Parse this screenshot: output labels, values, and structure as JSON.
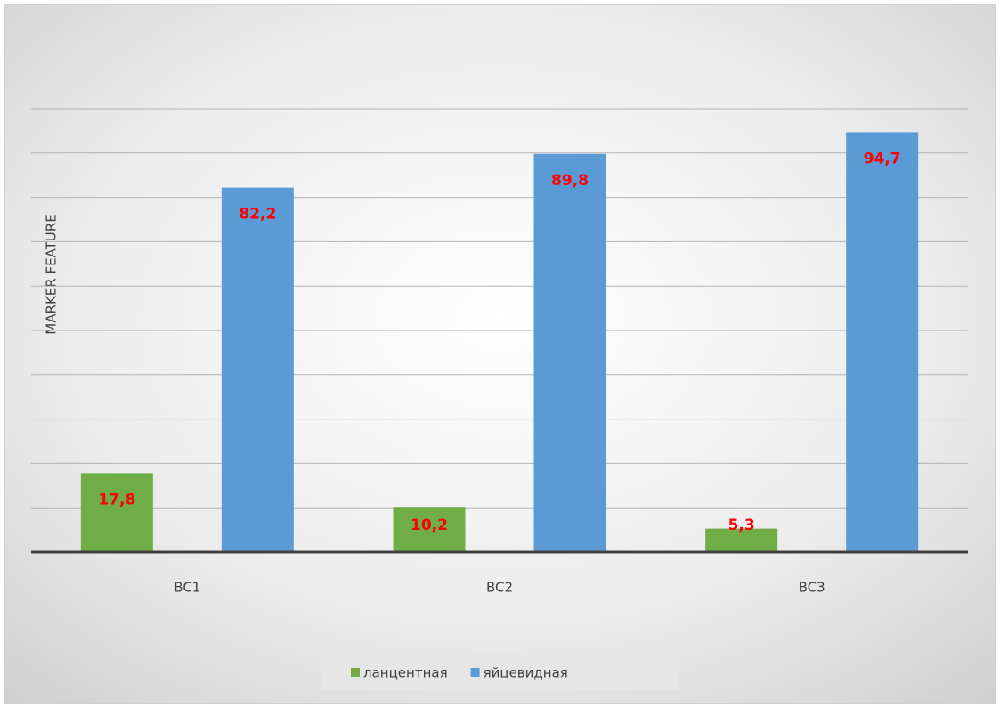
{
  "chart_data": {
    "type": "bar",
    "y_label": "MARKER FEATURE",
    "categories": [
      "BC1",
      "BC2",
      "BC3"
    ],
    "series": [
      {
        "name": "ланцентная",
        "color": "#70ad47",
        "values": [
          17.8,
          10.2,
          5.3
        ],
        "value_labels": [
          "17,8",
          "10,2",
          "5,3"
        ]
      },
      {
        "name": "яйцевидная",
        "color": "#5b9bd5",
        "values": [
          82.2,
          89.8,
          94.7
        ],
        "value_labels": [
          "82,2",
          "89,8",
          "94,7"
        ]
      }
    ],
    "ylim": [
      0,
      100
    ],
    "yticks": [
      0,
      10,
      20,
      30,
      40,
      50,
      60,
      70,
      80,
      90,
      100
    ],
    "grid": true,
    "legend": "bottom",
    "value_label_color": "#ff0000"
  }
}
